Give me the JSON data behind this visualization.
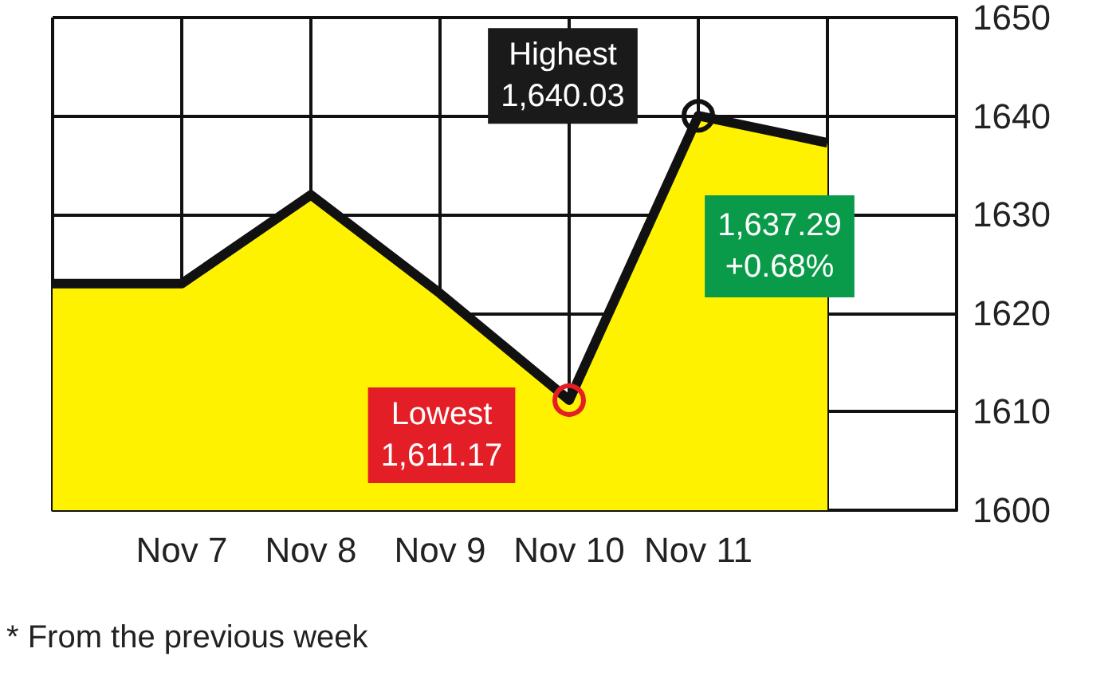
{
  "chart_data": {
    "type": "area",
    "categories": [
      null,
      "Nov 7",
      "Nov 8",
      "Nov 9",
      "Nov 10",
      "Nov 11",
      null,
      null
    ],
    "series": [
      {
        "color": "#fff200",
        "values": [
          1623,
          1623,
          1632,
          1622,
          1611.17,
          1640.03,
          1637.29,
          null
        ]
      }
    ],
    "ylim": [
      1600,
      1650
    ],
    "yticks": [
      1600,
      1610,
      1620,
      1630,
      1640,
      1650
    ],
    "grid": true,
    "marker": "none",
    "annotations": [
      {
        "text": "Highest\n1,640.03",
        "x": "Nov 11",
        "y": 1640.03
      },
      {
        "text": "Lowest\n1,611.17",
        "x": "Nov 10",
        "y": 1611.17
      },
      "1,637.29\n+0.68%",
      "* From the previous week"
    ]
  }
}
